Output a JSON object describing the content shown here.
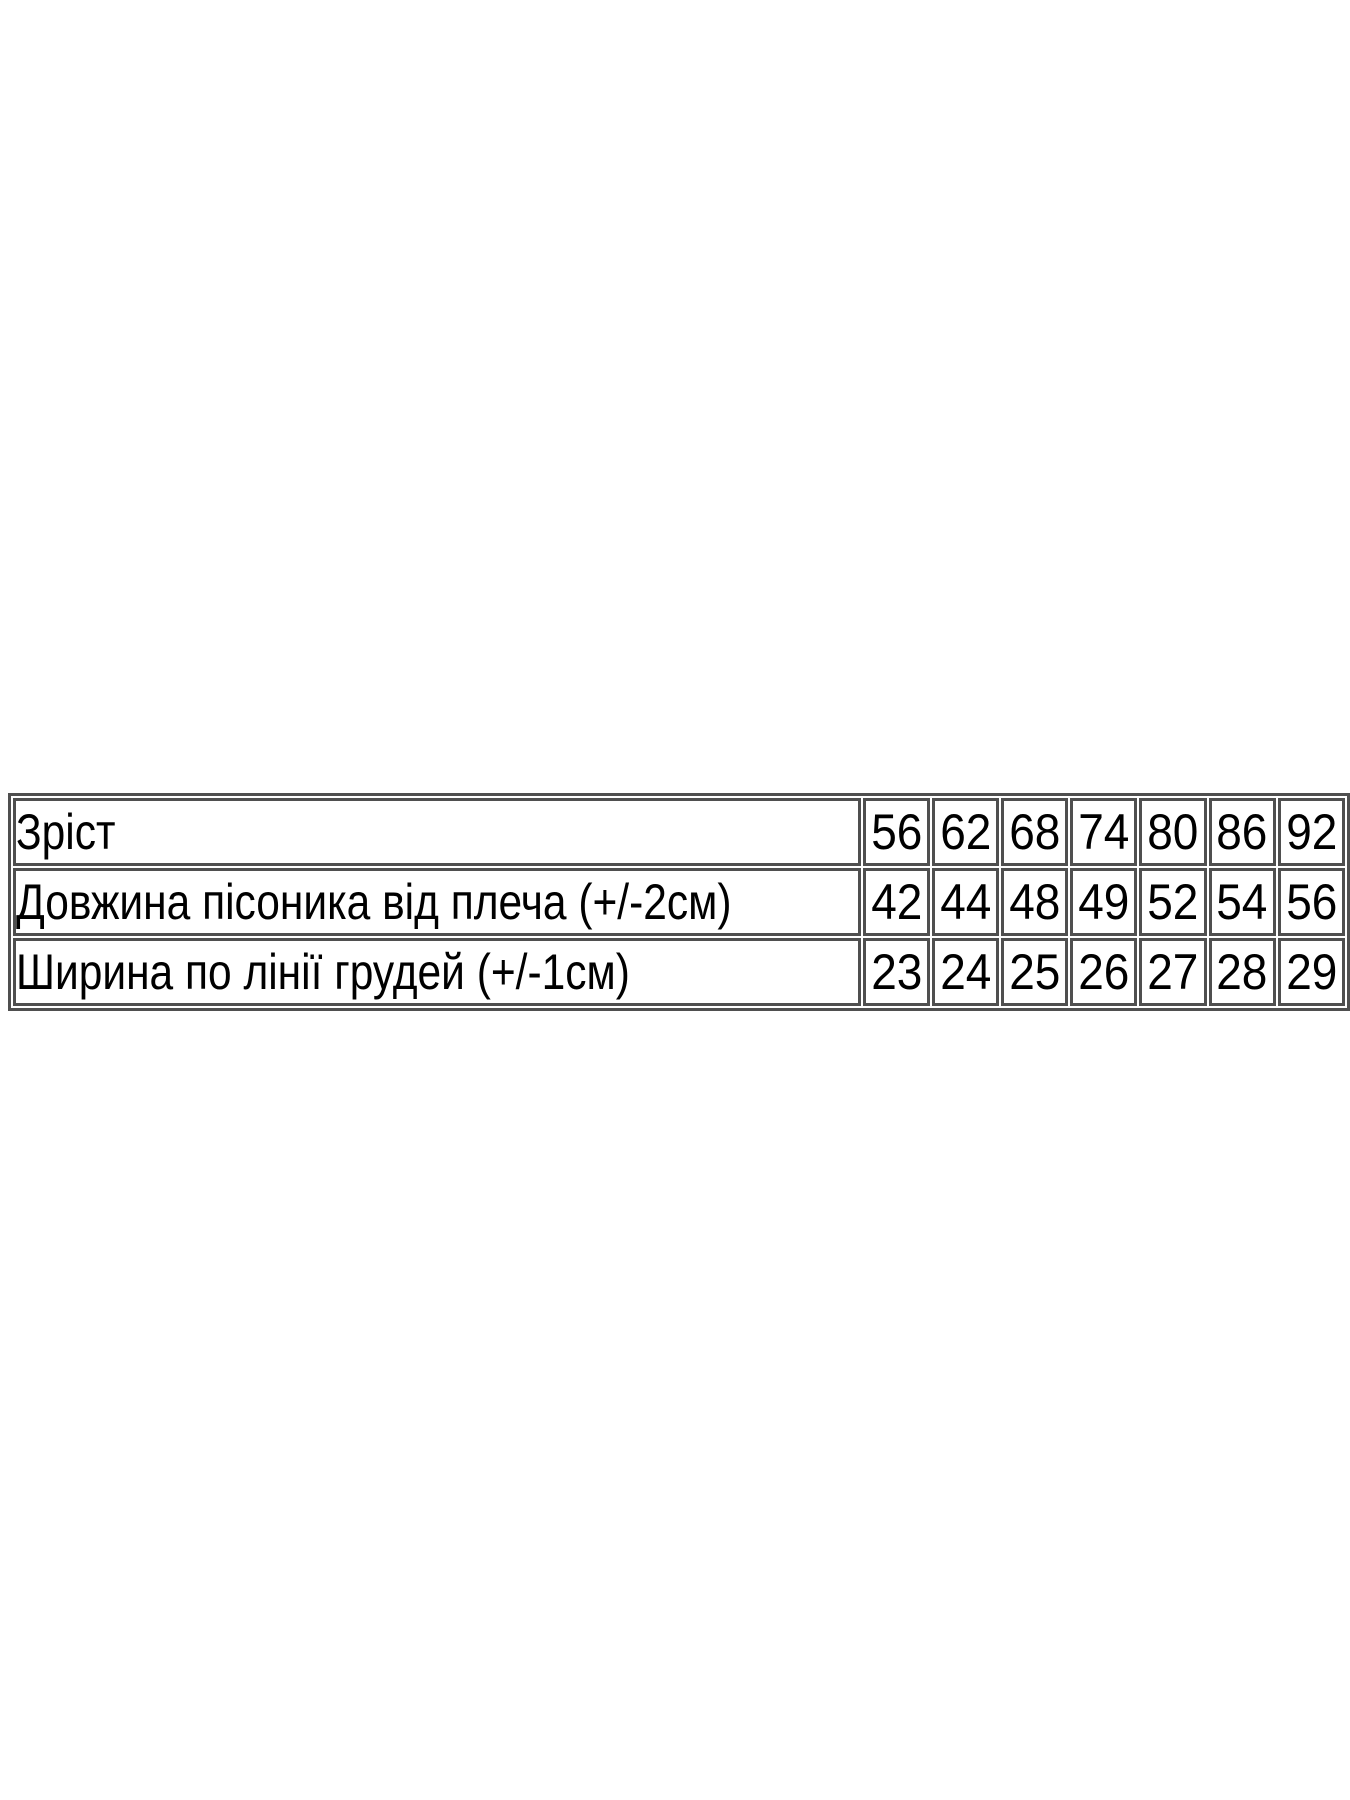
{
  "page": {
    "background_color": "#ffffff",
    "table_border_color": "#4f4f4f",
    "table_text_color": "#000000"
  },
  "size_chart": {
    "rows": [
      {
        "label": "Зріст",
        "values": [
          "56",
          "62",
          "68",
          "74",
          "80",
          "86",
          "92"
        ]
      },
      {
        "label": "Довжина пісоника від плеча (+/-2см)",
        "values": [
          "42",
          "44",
          "48",
          "49",
          "52",
          "54",
          "56"
        ]
      },
      {
        "label": "Ширина по лінії грудей (+/-1см)",
        "values": [
          "23",
          "24",
          "25",
          "26",
          "27",
          "28",
          "29"
        ]
      }
    ]
  }
}
